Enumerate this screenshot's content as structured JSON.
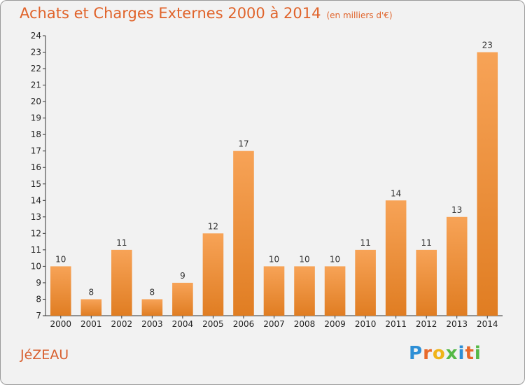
{
  "header": {
    "title": "Achats et Charges Externes 2000 à 2014",
    "unit": "(en milliers d'€)"
  },
  "footer": {
    "commune": "JéZEAU",
    "logo_text": "Proxiti"
  },
  "colors": {
    "title": "#e0632a",
    "bar_top": "#f7a357",
    "bar_bottom": "#e07d22",
    "background": "#f2f2f2",
    "logo": [
      "#2e8fd6",
      "#e8692a",
      "#f0b419",
      "#56b947",
      "#2e8fd6",
      "#e8692a",
      "#56b947"
    ]
  },
  "chart_data": {
    "type": "bar",
    "categories": [
      "2000",
      "2001",
      "2002",
      "2003",
      "2004",
      "2005",
      "2006",
      "2007",
      "2008",
      "2009",
      "2010",
      "2011",
      "2012",
      "2013",
      "2014"
    ],
    "values": [
      10,
      8,
      11,
      8,
      9,
      12,
      17,
      10,
      10,
      10,
      11,
      14,
      11,
      13,
      23
    ],
    "ylim": [
      7,
      24
    ],
    "yticks": [
      7,
      8,
      9,
      10,
      11,
      12,
      13,
      14,
      15,
      16,
      17,
      18,
      19,
      20,
      21,
      22,
      23,
      24
    ],
    "grid": false,
    "legend": "none"
  }
}
